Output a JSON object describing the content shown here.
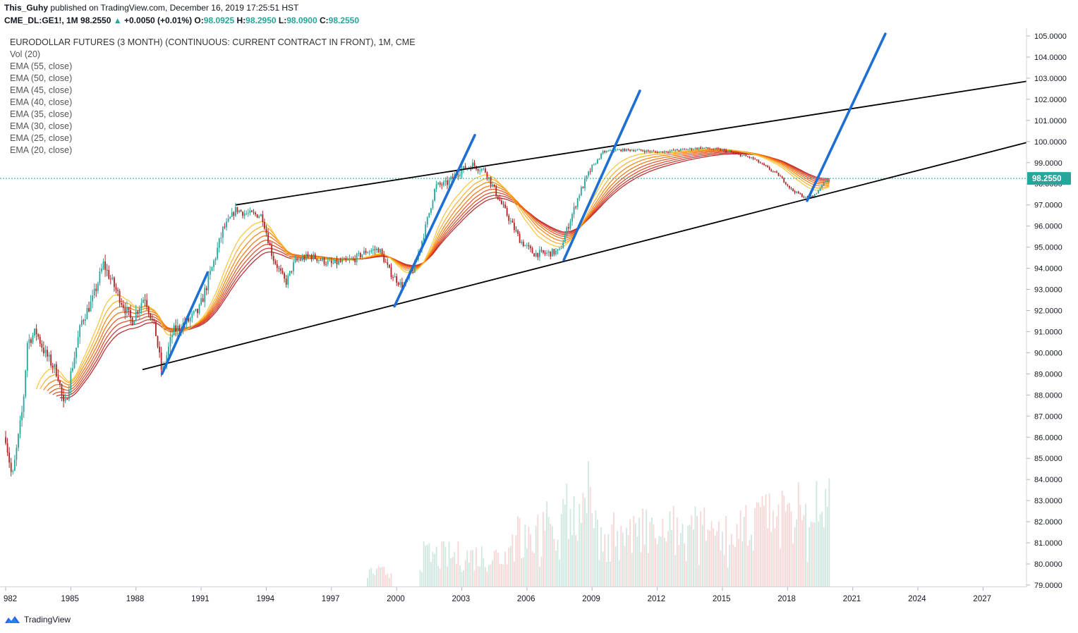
{
  "header": {
    "author": "This_Guhy",
    "published_text": "published on TradingView.com, December 16, 2019 17:25:51 HST",
    "symbol": "CME_DL:GE1!, 1M",
    "last": "98.2550",
    "arrow": "▲",
    "change": "+0.0050 (+0.01%)",
    "o_label": "O:",
    "o": "98.0925",
    "h_label": "H:",
    "h": "98.2950",
    "l_label": "L:",
    "l": "98.0900",
    "c_label": "C:",
    "c": "98.2550"
  },
  "legend": {
    "title": "EURODOLLAR FUTURES (3 MONTH) (CONTINUOUS: CURRENT CONTRACT IN FRONT), 1M, CME",
    "items": [
      "Vol (20)",
      "EMA (55, close)",
      "EMA (50, close)",
      "EMA (45, close)",
      "EMA (40, close)",
      "EMA (35, close)",
      "EMA (30, close)",
      "EMA (25, close)",
      "EMA (20, close)"
    ]
  },
  "price_tag": "98.2550",
  "brand": {
    "name": "TradingView"
  },
  "colors": {
    "up": "#26a69a",
    "down": "#b22222",
    "trend": "#1e6fd4",
    "channel": "#000000",
    "price_line": "#26a69a"
  },
  "chart_data": {
    "type": "candlestick",
    "x_ticks": [
      "982",
      "1985",
      "1988",
      "1991",
      "1994",
      "1997",
      "2000",
      "2003",
      "2006",
      "2009",
      "2012",
      "2015",
      "2018",
      "2021",
      "2024",
      "2027"
    ],
    "y_ticks": [
      "105.0000",
      "104.0000",
      "103.0000",
      "102.0000",
      "101.0000",
      "100.0000",
      "99.0000",
      "98.0000",
      "97.0000",
      "96.0000",
      "95.0000",
      "94.0000",
      "93.0000",
      "92.0000",
      "91.0000",
      "90.0000",
      "89.0000",
      "88.0000",
      "87.0000",
      "86.0000",
      "85.0000",
      "84.0000",
      "83.0000",
      "82.0000",
      "81.0000",
      "80.0000",
      "79.0000"
    ],
    "ylim": [
      79,
      105.1
    ],
    "xlim": [
      1982.0,
      2029.0
    ],
    "price_key_points": [
      [
        1982.0,
        86.0
      ],
      [
        1982.3,
        84.0
      ],
      [
        1982.8,
        87.5
      ],
      [
        1983.0,
        90.5
      ],
      [
        1983.4,
        91.0
      ],
      [
        1983.8,
        90.0
      ],
      [
        1984.4,
        89.0
      ],
      [
        1984.7,
        87.3
      ],
      [
        1985.0,
        89.0
      ],
      [
        1985.5,
        91.5
      ],
      [
        1986.0,
        92.5
      ],
      [
        1986.5,
        94.2
      ],
      [
        1987.3,
        92.5
      ],
      [
        1987.8,
        91.5
      ],
      [
        1988.4,
        92.7
      ],
      [
        1988.9,
        91.0
      ],
      [
        1989.2,
        89.0
      ],
      [
        1989.7,
        91.0
      ],
      [
        1990.4,
        91.5
      ],
      [
        1990.9,
        92.0
      ],
      [
        1991.5,
        94.0
      ],
      [
        1992.0,
        95.8
      ],
      [
        1992.6,
        96.8
      ],
      [
        1993.0,
        96.6
      ],
      [
        1993.8,
        96.5
      ],
      [
        1994.3,
        94.5
      ],
      [
        1994.9,
        93.3
      ],
      [
        1995.3,
        94.3
      ],
      [
        1996.0,
        94.6
      ],
      [
        1996.5,
        94.4
      ],
      [
        1997.0,
        94.2
      ],
      [
        1997.5,
        94.3
      ],
      [
        1998.0,
        94.4
      ],
      [
        1998.6,
        94.8
      ],
      [
        1999.2,
        94.9
      ],
      [
        1999.7,
        93.8
      ],
      [
        2000.3,
        93.1
      ],
      [
        2000.8,
        94.0
      ],
      [
        2001.3,
        95.8
      ],
      [
        2001.8,
        97.9
      ],
      [
        2002.3,
        98.0
      ],
      [
        2002.9,
        98.6
      ],
      [
        2003.5,
        98.9
      ],
      [
        2004.1,
        98.6
      ],
      [
        2004.6,
        97.5
      ],
      [
        2005.1,
        96.5
      ],
      [
        2005.7,
        95.3
      ],
      [
        2006.3,
        94.7
      ],
      [
        2006.9,
        94.7
      ],
      [
        2007.5,
        94.8
      ],
      [
        2007.9,
        96.0
      ],
      [
        2008.4,
        97.5
      ],
      [
        2008.9,
        98.6
      ],
      [
        2009.5,
        99.5
      ],
      [
        2010.2,
        99.6
      ],
      [
        2011.0,
        99.6
      ],
      [
        2012.0,
        99.5
      ],
      [
        2013.0,
        99.6
      ],
      [
        2014.0,
        99.7
      ],
      [
        2015.0,
        99.6
      ],
      [
        2015.7,
        99.4
      ],
      [
        2016.4,
        99.2
      ],
      [
        2017.0,
        98.8
      ],
      [
        2017.6,
        98.4
      ],
      [
        2018.2,
        97.7
      ],
      [
        2018.9,
        97.3
      ],
      [
        2019.3,
        97.5
      ],
      [
        2019.6,
        98.0
      ],
      [
        2019.95,
        98.25
      ]
    ],
    "ema_periods": [
      55,
      50,
      45,
      40,
      35,
      30,
      25,
      20
    ],
    "ema_colors": [
      "#b71c1c",
      "#c62828",
      "#d84315",
      "#e64a19",
      "#ef6c00",
      "#f57c00",
      "#f9a825",
      "#fbc02d"
    ],
    "channel_lines": [
      {
        "x1": 1988.3,
        "y1": 89.2,
        "x2": 2029.0,
        "y2": 99.95
      },
      {
        "x1": 1992.6,
        "y1": 97.0,
        "x2": 2029.0,
        "y2": 102.85
      }
    ],
    "trend_lines": [
      {
        "x1": 1989.2,
        "y1": 89.0,
        "x2": 1991.3,
        "y2": 93.8
      },
      {
        "x1": 1999.9,
        "y1": 92.2,
        "x2": 2003.6,
        "y2": 100.3
      },
      {
        "x1": 2007.7,
        "y1": 94.4,
        "x2": 2011.2,
        "y2": 102.4
      },
      {
        "x1": 2018.9,
        "y1": 97.2,
        "x2": 2022.5,
        "y2": 105.1
      }
    ],
    "current_price": 98.255,
    "volume_note": "Vol (20)"
  }
}
